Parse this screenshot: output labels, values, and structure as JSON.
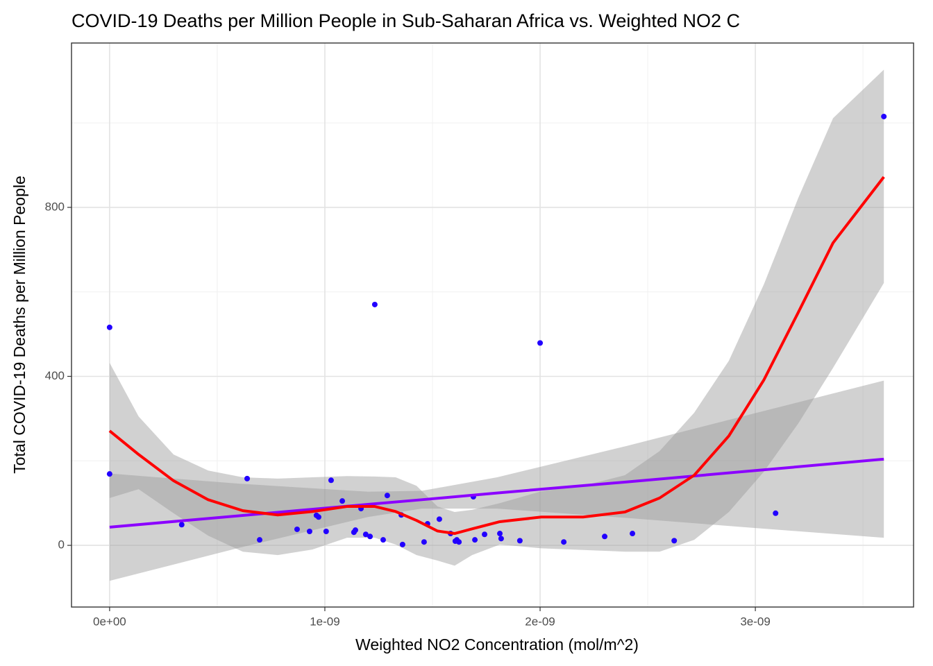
{
  "chart_data": {
    "type": "scatter",
    "title": "COVID-19 Deaths per Million People in Sub-Saharan Africa vs. Weighted NO2 C",
    "xlabel": "Weighted NO2 Concentration (mol/m^2)",
    "ylabel": "Total COVID-19 Deaths per Million People",
    "xlim": [
      -1.77e-10,
      3.735e-09
    ],
    "ylim": [
      -146,
      1189
    ],
    "xticks": [
      {
        "value": 0,
        "label": "0e+00"
      },
      {
        "value": 1e-09,
        "label": "1e-09"
      },
      {
        "value": 2e-09,
        "label": "2e-09"
      },
      {
        "value": 3e-09,
        "label": "3e-09"
      }
    ],
    "xminor": [
      5e-10,
      1.5e-09,
      2.5e-09,
      3.5e-09
    ],
    "yticks": [
      0,
      400,
      800
    ],
    "yminor": [
      200,
      600,
      1000
    ],
    "grid": true,
    "points": {
      "color": "#2200ff",
      "x": [
        0,
        0,
        3.35e-10,
        6.39e-10,
        6.97e-10,
        8.71e-10,
        9.29e-10,
        9.61e-10,
        9.71e-10,
        1.006e-09,
        1.029e-09,
        1.081e-09,
        1.135e-09,
        1.142e-09,
        1.168e-09,
        1.19e-09,
        1.21e-09,
        1.232e-09,
        1.271e-09,
        1.29e-09,
        1.355e-09,
        1.361e-09,
        1.461e-09,
        1.477e-09,
        1.532e-09,
        1.584e-09,
        1.606e-09,
        1.613e-09,
        1.623e-09,
        1.69e-09,
        1.697e-09,
        1.742e-09,
        1.813e-09,
        1.819e-09,
        1.906e-09,
        2e-09,
        2.11e-09,
        2.3e-09,
        2.429e-09,
        2.623e-09,
        3.094e-09,
        3.597e-09
      ],
      "y": [
        516,
        169,
        49,
        158,
        13,
        38,
        33,
        71,
        67,
        33,
        154,
        105,
        31,
        36,
        87,
        26,
        21,
        570,
        13,
        118,
        72,
        2,
        8,
        51,
        62,
        28,
        10,
        13,
        8,
        115,
        13,
        26,
        28,
        16,
        11,
        479,
        8,
        21,
        28,
        11,
        76,
        1015
      ]
    },
    "fits": [
      {
        "type": "lm",
        "color": "#8b00ff",
        "x": [
          0,
          6e-10,
          1.2e-09,
          1.45e-09,
          1.8e-09,
          2.4e-09,
          3e-09,
          3.597e-09
        ],
        "y": [
          43,
          70,
          97,
          108,
          124,
          150,
          177,
          204
        ],
        "lower": [
          -84,
          -6,
          67,
          87,
          87,
          65,
          41,
          18
        ],
        "upper": [
          170,
          146,
          127,
          129,
          161,
          235,
          313,
          390
        ]
      },
      {
        "type": "loess",
        "color": "#ff0000",
        "x": [
          0,
          1.35e-10,
          2.97e-10,
          4.58e-10,
          6.19e-10,
          7.81e-10,
          9.42e-10,
          1.103e-09,
          1.232e-09,
          1.329e-09,
          1.426e-09,
          1.523e-09,
          1.603e-09,
          1.684e-09,
          1.813e-09,
          2.006e-09,
          2.2e-09,
          2.394e-09,
          2.555e-09,
          2.716e-09,
          2.877e-09,
          3.039e-09,
          3.2e-09,
          3.361e-09,
          3.597e-09
        ],
        "y": [
          271,
          215,
          153,
          108,
          82,
          72,
          80,
          92,
          92,
          80,
          59,
          34,
          28,
          39,
          56,
          67,
          67,
          79,
          112,
          166,
          259,
          391,
          552,
          716,
          872
        ],
        "lower": [
          112,
          133,
          76,
          23,
          -15,
          -23,
          -10,
          18,
          18,
          2,
          -23,
          -36,
          -48,
          -23,
          2,
          -7,
          -11,
          -15,
          -15,
          13,
          79,
          174,
          289,
          420,
          621
        ],
        "upper": [
          432,
          305,
          215,
          177,
          161,
          158,
          161,
          164,
          163,
          161,
          141,
          92,
          79,
          84,
          100,
          128,
          141,
          166,
          223,
          314,
          437,
          617,
          823,
          1011,
          1126
        ]
      }
    ]
  }
}
